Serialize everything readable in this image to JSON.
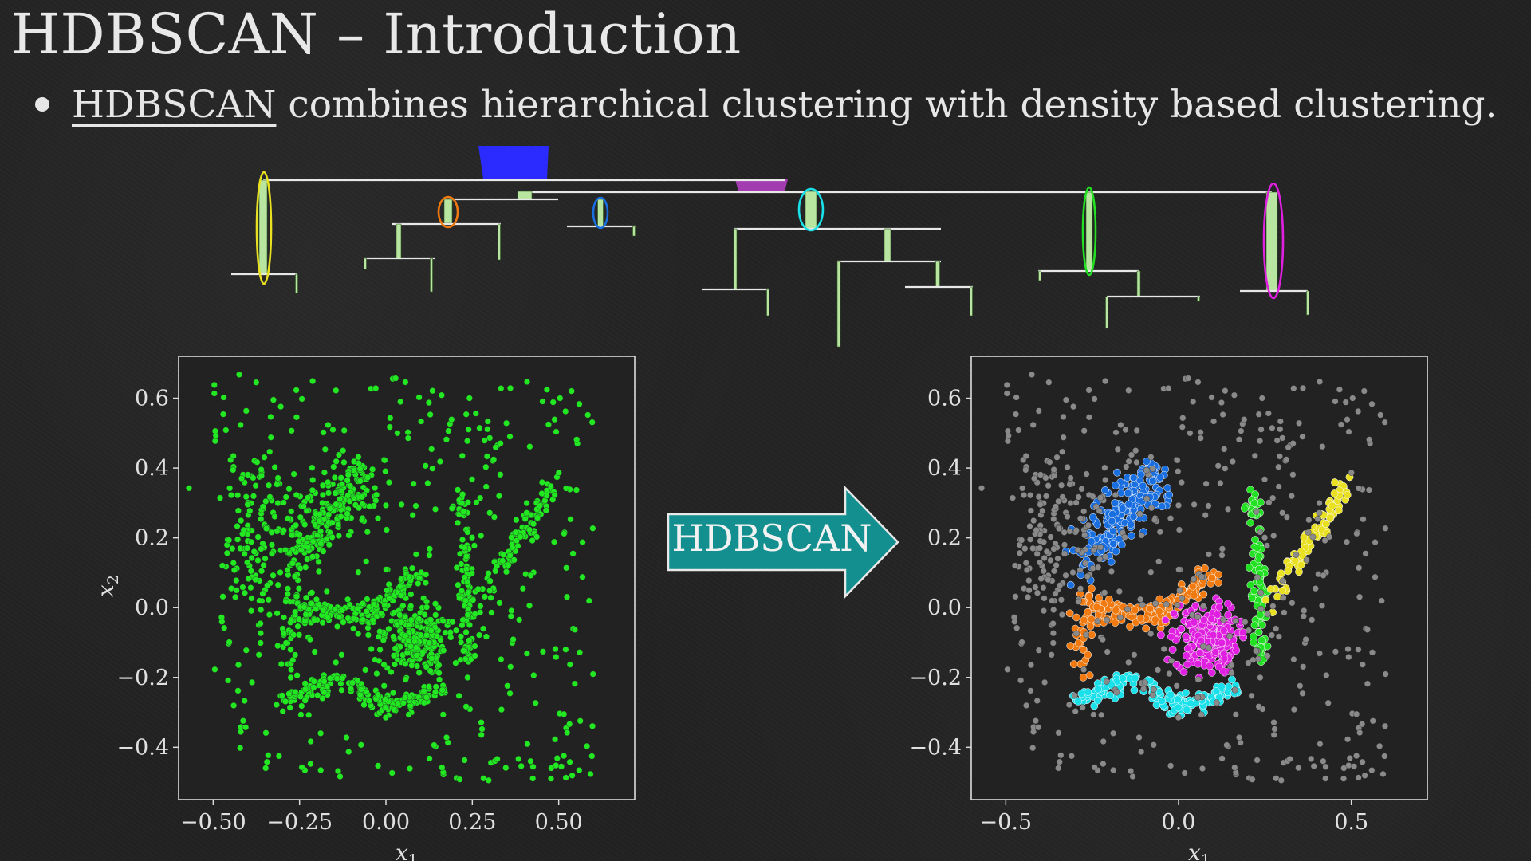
{
  "slide": {
    "title": "HDBSCAN – Introduction",
    "bullet": {
      "link_text": "HDBSCAN",
      "rest_text": " combines hierarchical clustering with density based clustering."
    },
    "arrow_label": "HDBSCAN"
  },
  "colors": {
    "background": "#222222",
    "points_raw": "#22e822",
    "noise": "#8a8a8a",
    "arrow_fill": "#138f8f",
    "clusters": {
      "blue": "#1a6fe0",
      "orange": "#f07a10",
      "cyan": "#1ae0ea",
      "magenta": "#e020e0",
      "green": "#22e022",
      "yellow": "#e8e020"
    },
    "tree_blue": "#2b2bff",
    "tree_purple": "#a23cb0",
    "tree_leaf": "#b8e6a0"
  },
  "icons": {
    "bullet": "bullet-dot-icon",
    "arrow": "right-arrow-icon"
  },
  "chart_data": [
    {
      "type": "scatter",
      "xlabel": "x1",
      "ylabel": "x2",
      "xlim": [
        -0.6,
        0.72
      ],
      "ylim": [
        -0.55,
        0.72
      ],
      "xticks": [
        -0.5,
        -0.25,
        0.0,
        0.25,
        0.5
      ],
      "xtick_labels": [
        "−0.50",
        "−0.25",
        "0.00",
        "0.25",
        "0.50"
      ],
      "yticks": [
        0.6,
        0.4,
        0.2,
        0.0,
        -0.2,
        -0.4
      ],
      "ytick_labels": [
        "0.6",
        "0.4",
        "0.2",
        "0.0",
        "−0.2",
        "−0.4"
      ],
      "grid": false,
      "series": [
        {
          "color": "#22e822",
          "structure": "all points, unclustered"
        }
      ]
    },
    {
      "type": "scatter",
      "xlabel": "x1",
      "ylabel": "",
      "xlim": [
        -0.6,
        0.72
      ],
      "ylim": [
        -0.55,
        0.72
      ],
      "xticks": [
        -0.5,
        0.0,
        0.5
      ],
      "xtick_labels": [
        "−0.5",
        "0.0",
        "0.5"
      ],
      "yticks": [
        0.6,
        0.4,
        0.2,
        0.0,
        -0.2,
        -0.4
      ],
      "ytick_labels": [
        "0.6",
        "0.4",
        "0.2",
        "0.0",
        "−0.2",
        "−0.4"
      ],
      "grid": false,
      "series": [
        {
          "color": "#8a8a8a",
          "structure": "noise"
        },
        {
          "color": "#1a6fe0",
          "structure": "cluster"
        },
        {
          "color": "#f07a10",
          "structure": "cluster"
        },
        {
          "color": "#1ae0ea",
          "structure": "cluster"
        },
        {
          "color": "#e020e0",
          "structure": "cluster"
        },
        {
          "color": "#22e022",
          "structure": "cluster"
        },
        {
          "color": "#e8e020",
          "structure": "cluster"
        }
      ]
    }
  ]
}
